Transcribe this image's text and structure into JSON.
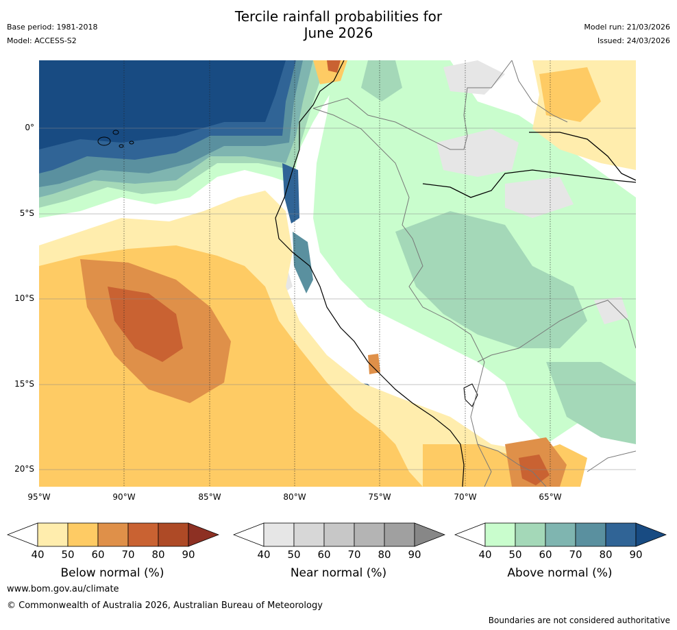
{
  "title": {
    "line1": "Tercile rainfall probabilities for",
    "line2": "June 2026"
  },
  "meta_left": {
    "base_period": "Base period: 1981-2018",
    "model": "Model: ACCESS-S2"
  },
  "meta_right": {
    "model_run": "Model run: 21/03/2026",
    "issued": "Issued: 24/03/2026"
  },
  "map": {
    "region": "Eastern Pacific / western South America",
    "lat_labels": [
      "0°",
      "5°S",
      "10°S",
      "15°S",
      "20°S"
    ],
    "lon_labels": [
      "95°W",
      "90°W",
      "85°W",
      "80°W",
      "75°W",
      "70°W",
      "65°W"
    ]
  },
  "colorbars": [
    {
      "title": "Below normal (%)",
      "ticks": [
        "40",
        "50",
        "60",
        "70",
        "80",
        "90"
      ],
      "colors": [
        "#ffedad",
        "#fecb64",
        "#df9049",
        "#c96232",
        "#ae4a26",
        "#8d3023"
      ]
    },
    {
      "title": "Near normal (%)",
      "ticks": [
        "40",
        "50",
        "60",
        "70",
        "80",
        "90"
      ],
      "colors": [
        "#e6e6e6",
        "#d7d7d7",
        "#c7c7c7",
        "#b4b4b4",
        "#a0a0a0",
        "#878787"
      ]
    },
    {
      "title": "Above normal (%)",
      "ticks": [
        "40",
        "50",
        "60",
        "70",
        "80",
        "90"
      ],
      "colors": [
        "#c9fdcd",
        "#a4d8b8",
        "#7fb5b0",
        "#5a909f",
        "#306496",
        "#184b82"
      ]
    }
  ],
  "footer": {
    "url": "www.bom.gov.au/climate",
    "copyright": "© Commonwealth of Australia 2026, Australian Bureau of Meteorology",
    "disclaimer": "Boundaries are not considered authoritative"
  }
}
